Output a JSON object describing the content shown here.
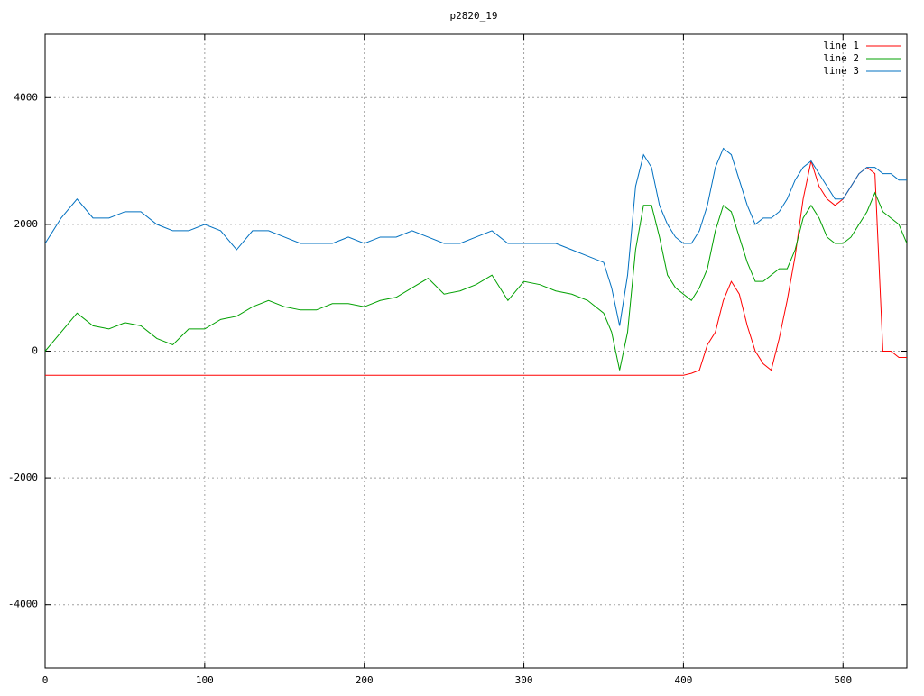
{
  "chart_data": {
    "type": "line",
    "title": "p2820_19",
    "x": [
      0,
      10,
      20,
      30,
      40,
      50,
      60,
      70,
      80,
      90,
      100,
      110,
      120,
      130,
      140,
      150,
      160,
      170,
      180,
      190,
      200,
      210,
      220,
      230,
      240,
      250,
      260,
      270,
      280,
      290,
      300,
      310,
      320,
      330,
      340,
      350,
      355,
      360,
      365,
      370,
      375,
      380,
      385,
      390,
      395,
      400,
      405,
      410,
      415,
      420,
      425,
      430,
      435,
      440,
      445,
      450,
      455,
      460,
      465,
      470,
      475,
      480,
      485,
      490,
      495,
      500,
      505,
      510,
      515,
      520,
      525,
      530,
      535,
      540
    ],
    "series": [
      {
        "name": "line 1",
        "color": "#ff0000",
        "values": [
          -380,
          -380,
          -380,
          -380,
          -380,
          -380,
          -380,
          -380,
          -380,
          -380,
          -380,
          -380,
          -380,
          -380,
          -380,
          -380,
          -380,
          -380,
          -380,
          -380,
          -380,
          -380,
          -380,
          -380,
          -380,
          -380,
          -380,
          -380,
          -380,
          -380,
          -380,
          -380,
          -380,
          -380,
          -380,
          -380,
          -380,
          -380,
          -380,
          -380,
          -380,
          -380,
          -380,
          -380,
          -380,
          -380,
          -350,
          -300,
          100,
          300,
          800,
          1100,
          900,
          400,
          0,
          -200,
          -300,
          200,
          800,
          1500,
          2400,
          3000,
          2600,
          2400,
          2300,
          2400,
          2600,
          2800,
          2900,
          2800,
          0,
          0,
          -100,
          -100
        ]
      },
      {
        "name": "line 2",
        "color": "#00a000",
        "values": [
          0,
          300,
          600,
          400,
          350,
          450,
          400,
          200,
          100,
          350,
          350,
          500,
          550,
          700,
          800,
          700,
          650,
          650,
          750,
          750,
          700,
          800,
          850,
          1000,
          1150,
          900,
          950,
          1050,
          1200,
          800,
          1100,
          1050,
          950,
          900,
          800,
          600,
          300,
          -300,
          300,
          1600,
          2300,
          2300,
          1800,
          1200,
          1000,
          900,
          800,
          1000,
          1300,
          1900,
          2300,
          2200,
          1800,
          1400,
          1100,
          1100,
          1200,
          1300,
          1300,
          1600,
          2100,
          2300,
          2100,
          1800,
          1700,
          1700,
          1800,
          2000,
          2200,
          2500,
          2200,
          2100,
          2000,
          1700
        ]
      },
      {
        "name": "line 3",
        "color": "#0070c0",
        "values": [
          1700,
          2100,
          2400,
          2100,
          2100,
          2200,
          2200,
          2000,
          1900,
          1900,
          2000,
          1900,
          1600,
          1900,
          1900,
          1800,
          1700,
          1700,
          1700,
          1800,
          1700,
          1800,
          1800,
          1900,
          1800,
          1700,
          1700,
          1800,
          1900,
          1700,
          1700,
          1700,
          1700,
          1600,
          1500,
          1400,
          1000,
          400,
          1200,
          2600,
          3100,
          2900,
          2300,
          2000,
          1800,
          1700,
          1700,
          1900,
          2300,
          2900,
          3200,
          3100,
          2700,
          2300,
          2000,
          2100,
          2100,
          2200,
          2400,
          2700,
          2900,
          3000,
          2800,
          2600,
          2400,
          2400,
          2600,
          2800,
          2900,
          2900,
          2800,
          2800,
          2700,
          2700
        ]
      }
    ],
    "xlim": [
      0,
      540
    ],
    "ylim": [
      -5000,
      5000
    ],
    "xticks": [
      0,
      100,
      200,
      300,
      400,
      500
    ],
    "yticks": [
      -4000,
      -2000,
      0,
      2000,
      4000
    ],
    "grid": true,
    "legend": "top-right"
  }
}
